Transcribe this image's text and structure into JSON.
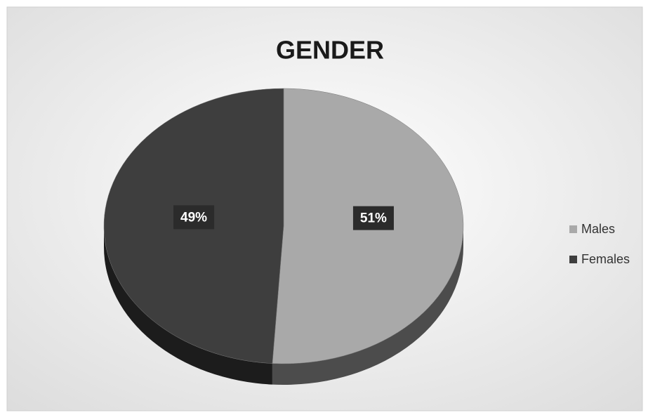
{
  "chart_data": {
    "type": "pie",
    "title": "GENDER",
    "categories": [
      "Males",
      "Females"
    ],
    "values": [
      51,
      49
    ],
    "value_labels": [
      "51%",
      "49%"
    ],
    "colors": [
      "#a9a9a9",
      "#3e3e3e"
    ],
    "legend": "right"
  }
}
